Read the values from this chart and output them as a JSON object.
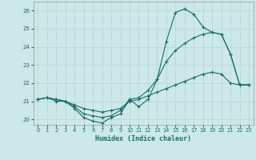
{
  "xlabel": "Humidex (Indice chaleur)",
  "bg_color": "#cce8e8",
  "grid_color": "#b8d8d8",
  "line_color": "#1a6b6b",
  "xlim": [
    -0.5,
    23.5
  ],
  "ylim": [
    19.7,
    26.5
  ],
  "xticks": [
    0,
    1,
    2,
    3,
    4,
    5,
    6,
    7,
    8,
    9,
    10,
    11,
    12,
    13,
    14,
    15,
    16,
    17,
    18,
    19,
    20,
    21,
    22,
    23
  ],
  "yticks": [
    20,
    21,
    22,
    23,
    24,
    25,
    26
  ],
  "series1_x": [
    0,
    1,
    2,
    3,
    4,
    5,
    6,
    7,
    8,
    9,
    10,
    11,
    12,
    13,
    14,
    15,
    16,
    17,
    18,
    19,
    20,
    21,
    22,
    23
  ],
  "series1_y": [
    21.1,
    21.2,
    21.1,
    21.0,
    20.6,
    20.1,
    19.9,
    19.8,
    20.1,
    20.3,
    21.1,
    20.7,
    21.1,
    22.2,
    24.3,
    25.9,
    26.1,
    25.8,
    25.1,
    24.8,
    24.7,
    23.6,
    21.9,
    21.9
  ],
  "series2_x": [
    0,
    1,
    2,
    3,
    4,
    5,
    6,
    7,
    8,
    9,
    10,
    11,
    12,
    13,
    14,
    15,
    16,
    17,
    18,
    19,
    20,
    21,
    22,
    23
  ],
  "series2_y": [
    21.1,
    21.2,
    21.1,
    21.0,
    20.7,
    20.3,
    20.2,
    20.1,
    20.2,
    20.5,
    21.1,
    21.2,
    21.6,
    22.2,
    23.2,
    23.8,
    24.2,
    24.5,
    24.7,
    24.8,
    24.7,
    23.6,
    21.9,
    21.9
  ],
  "series3_x": [
    0,
    1,
    2,
    3,
    4,
    5,
    6,
    7,
    8,
    9,
    10,
    11,
    12,
    13,
    14,
    15,
    16,
    17,
    18,
    19,
    20,
    21,
    22,
    23
  ],
  "series3_y": [
    21.1,
    21.2,
    21.0,
    21.0,
    20.8,
    20.6,
    20.5,
    20.4,
    20.5,
    20.6,
    21.0,
    21.1,
    21.3,
    21.5,
    21.7,
    21.9,
    22.1,
    22.3,
    22.5,
    22.6,
    22.5,
    22.0,
    21.9,
    21.9
  ]
}
